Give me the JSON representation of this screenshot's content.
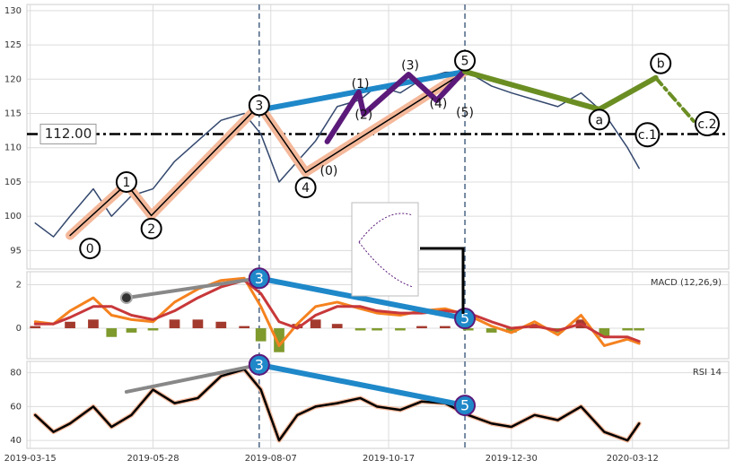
{
  "chart_data": [
    {
      "type": "line",
      "panel": "price",
      "xlim": [
        "2019-03-13",
        "2020-05-09"
      ],
      "ylim": [
        92.3,
        130.9
      ],
      "yticks": [
        95,
        100,
        105,
        110,
        115,
        120,
        125,
        130
      ],
      "x": [
        "2019-03-18",
        "2019-03-29",
        "2019-04-08",
        "2019-04-22",
        "2019-05-03",
        "2019-05-15",
        "2019-05-28",
        "2019-06-10",
        "2019-06-24",
        "2019-07-08",
        "2019-07-22",
        "2019-08-01",
        "2019-08-12",
        "2019-08-23",
        "2019-09-03",
        "2019-09-16",
        "2019-09-30",
        "2019-10-10",
        "2019-10-24",
        "2019-11-06",
        "2019-11-20",
        "2019-12-04",
        "2019-12-18",
        "2019-12-30",
        "2020-01-13",
        "2020-01-27",
        "2020-02-10",
        "2020-02-24",
        "2020-03-09",
        "2020-03-16"
      ],
      "series": [
        {
          "color": "#34486e",
          "width": 1.5,
          "values": [
            99,
            97,
            100,
            104,
            100,
            103,
            104,
            108,
            111,
            114,
            115,
            112,
            105,
            108,
            111,
            116,
            117,
            119,
            118,
            120,
            121,
            121,
            119,
            118,
            117,
            116,
            118,
            115,
            110,
            107
          ]
        }
      ],
      "hline": {
        "value": 112,
        "label": "112.00"
      },
      "vlines": [
        "2019-07-31",
        "2019-12-02"
      ],
      "waves": [
        {
          "color": "#f4b89a",
          "width": 10,
          "x": [
            "2019-04-08",
            "2019-05-12",
            "2019-05-27",
            "2019-07-31",
            "2019-08-28",
            "2019-12-02"
          ],
          "values": [
            97.2,
            104.7,
            100.1,
            116.2,
            106.4,
            121.1
          ]
        },
        {
          "color": "#000000",
          "width": 1.5,
          "x": [
            "2019-04-08",
            "2019-05-12",
            "2019-05-27",
            "2019-07-31",
            "2019-08-28",
            "2019-12-02"
          ],
          "values": [
            97.2,
            104.7,
            100.1,
            116.2,
            106.4,
            121.1
          ]
        },
        {
          "color": "#1f88c9",
          "width": 6,
          "x": [
            "2019-07-31",
            "2019-12-02"
          ],
          "values": [
            115.5,
            121.1
          ]
        },
        {
          "color": "#5b1a7a",
          "width": 6,
          "x": [
            "2019-09-10",
            "2019-09-29",
            "2019-10-02",
            "2019-10-29",
            "2019-11-15",
            "2019-12-02"
          ],
          "values": [
            110.9,
            118.1,
            114.9,
            120.7,
            116.9,
            121.3
          ]
        },
        {
          "color": "#6b8e23",
          "width": 6,
          "x": [
            "2019-12-02",
            "2020-02-21",
            "2020-03-26"
          ],
          "values": [
            121.1,
            115.6,
            120.2
          ]
        },
        {
          "color": "#6b8e23",
          "width": 4,
          "dashed": true,
          "x": [
            "2020-03-26",
            "2020-04-24"
          ],
          "values": [
            120.2,
            112.2
          ]
        }
      ],
      "annotations": [
        {
          "text": "0",
          "x": "2019-04-20",
          "y": 95.3,
          "style": "circle"
        },
        {
          "text": "1",
          "x": "2019-05-12",
          "y": 105.0,
          "style": "circle"
        },
        {
          "text": "2",
          "x": "2019-05-27",
          "y": 98.2,
          "style": "circle"
        },
        {
          "text": "3",
          "x": "2019-07-31",
          "y": 116.2,
          "style": "circle"
        },
        {
          "text": "4",
          "x": "2019-08-28",
          "y": 104.2,
          "style": "circle"
        },
        {
          "text": "5",
          "x": "2019-12-02",
          "y": 122.7,
          "style": "circle"
        },
        {
          "text": "(0)",
          "x": "2019-09-11",
          "y": 106.7,
          "style": "plain"
        },
        {
          "text": "(1)",
          "x": "2019-09-30",
          "y": 119.4,
          "style": "plain"
        },
        {
          "text": "(2)",
          "x": "2019-10-02",
          "y": 114.9,
          "style": "plain"
        },
        {
          "text": "(3)",
          "x": "2019-10-30",
          "y": 122.1,
          "style": "plain"
        },
        {
          "text": "(4)",
          "x": "2019-11-16",
          "y": 116.5,
          "style": "plain"
        },
        {
          "text": "(5)",
          "x": "2019-12-02",
          "y": 115.2,
          "style": "plain"
        },
        {
          "text": "a",
          "x": "2020-02-21",
          "y": 114.1,
          "style": "circle"
        },
        {
          "text": "b",
          "x": "2020-03-29",
          "y": 122.3,
          "style": "circle"
        },
        {
          "text": "c.1",
          "x": "2020-03-21",
          "y": 111.9,
          "style": "circle"
        },
        {
          "text": "c.2",
          "x": "2020-04-26",
          "y": 113.5,
          "style": "circle"
        }
      ]
    },
    {
      "type": "line",
      "panel": "macd",
      "label": "MACD (12,26,9)",
      "xlim": [
        "2019-03-13",
        "2020-05-09"
      ],
      "ylim": [
        -1.4,
        2.6
      ],
      "yticks": [
        0,
        2
      ],
      "x": [
        "2019-03-18",
        "2019-03-29",
        "2019-04-08",
        "2019-04-22",
        "2019-05-03",
        "2019-05-15",
        "2019-05-28",
        "2019-06-10",
        "2019-06-24",
        "2019-07-08",
        "2019-07-22",
        "2019-08-01",
        "2019-08-12",
        "2019-08-23",
        "2019-09-03",
        "2019-09-16",
        "2019-09-30",
        "2019-10-10",
        "2019-10-24",
        "2019-11-06",
        "2019-11-20",
        "2019-12-04",
        "2019-12-18",
        "2019-12-30",
        "2020-01-13",
        "2020-01-27",
        "2020-02-10",
        "2020-02-24",
        "2020-03-09",
        "2020-03-16"
      ],
      "histogram": {
        "colors": [
          "#a33a2e",
          "#7f9a2d"
        ],
        "values": [
          0.1,
          0,
          0.3,
          0.4,
          -0.4,
          -0.2,
          -0.1,
          0.4,
          0.4,
          0.3,
          0.1,
          -0.6,
          -1.1,
          0.2,
          0.4,
          0.2,
          -0.1,
          -0.1,
          -0.1,
          0.1,
          0.1,
          -0.1,
          -0.2,
          -0.2,
          0.2,
          -0.2,
          0.4,
          -0.4,
          -0.1,
          -0.1
        ]
      },
      "series": [
        {
          "color": "#f5821f",
          "width": 3,
          "values": [
            0.3,
            0.2,
            0.8,
            1.4,
            0.6,
            0.4,
            0.3,
            1.2,
            1.8,
            2.2,
            2.3,
            1.0,
            -0.8,
            0.2,
            1.0,
            1.2,
            0.9,
            0.7,
            0.6,
            0.8,
            0.9,
            0.6,
            0.1,
            -0.2,
            0.3,
            -0.3,
            0.6,
            -0.8,
            -0.5,
            -0.7
          ]
        },
        {
          "color": "#c8383a",
          "width": 3,
          "values": [
            0.2,
            0.2,
            0.5,
            1.0,
            1.0,
            0.6,
            0.4,
            0.8,
            1.4,
            1.9,
            2.2,
            1.6,
            0.3,
            0.0,
            0.6,
            1.0,
            1.0,
            0.8,
            0.7,
            0.7,
            0.8,
            0.7,
            0.3,
            0.0,
            0.1,
            -0.1,
            0.2,
            -0.4,
            -0.4,
            -0.6
          ]
        }
      ],
      "vlines": [
        "2019-07-31",
        "2019-12-02"
      ],
      "waves": [
        {
          "color": "#888888",
          "width": 4,
          "x": [
            "2019-05-12",
            "2019-07-31"
          ],
          "values": [
            1.4,
            2.3
          ],
          "dot": true
        },
        {
          "color": "#1f88c9",
          "width": 6,
          "x": [
            "2019-07-31",
            "2019-12-02"
          ],
          "values": [
            2.3,
            0.45
          ]
        }
      ],
      "annotations": [
        {
          "text": "3",
          "x": "2019-07-31",
          "y": 2.3,
          "style": "disc"
        },
        {
          "text": "5",
          "x": "2019-12-02",
          "y": 0.45,
          "style": "disc"
        }
      ]
    },
    {
      "type": "line",
      "panel": "rsi",
      "label": "RSI 14",
      "xlim": [
        "2019-03-13",
        "2020-05-09"
      ],
      "ylim": [
        35.3,
        86.7
      ],
      "yticks": [
        40,
        60,
        80
      ],
      "xticks": [
        "2019-03-15",
        "2019-05-28",
        "2019-08-07",
        "2019-10-17",
        "2019-12-30",
        "2020-03-12"
      ],
      "x": [
        "2019-03-18",
        "2019-03-29",
        "2019-04-08",
        "2019-04-22",
        "2019-05-03",
        "2019-05-15",
        "2019-05-28",
        "2019-06-10",
        "2019-06-24",
        "2019-07-08",
        "2019-07-22",
        "2019-08-01",
        "2019-08-12",
        "2019-08-23",
        "2019-09-03",
        "2019-09-16",
        "2019-09-30",
        "2019-10-10",
        "2019-10-24",
        "2019-11-06",
        "2019-11-20",
        "2019-12-04",
        "2019-12-18",
        "2019-12-30",
        "2020-01-13",
        "2020-01-27",
        "2020-02-10",
        "2020-02-24",
        "2020-03-09",
        "2020-03-16"
      ],
      "series": [
        {
          "color": "#f4b89a",
          "width": 5,
          "values": [
            55,
            45,
            50,
            60,
            48,
            55,
            70,
            62,
            65,
            78,
            82,
            70,
            40,
            55,
            60,
            62,
            65,
            60,
            58,
            63,
            62,
            55,
            50,
            48,
            55,
            52,
            60,
            45,
            40,
            50
          ]
        },
        {
          "color": "#000000",
          "width": 2.5,
          "values": [
            55,
            45,
            50,
            60,
            48,
            55,
            70,
            62,
            65,
            78,
            82,
            70,
            40,
            55,
            60,
            62,
            65,
            60,
            58,
            63,
            62,
            55,
            50,
            48,
            55,
            52,
            60,
            45,
            40,
            50
          ]
        }
      ],
      "vlines": [
        "2019-07-31",
        "2019-12-02"
      ],
      "waves": [
        {
          "color": "#888888",
          "width": 4,
          "x": [
            "2019-05-12",
            "2019-07-31"
          ],
          "values": [
            68.7,
            84.7
          ]
        },
        {
          "color": "#1f88c9",
          "width": 6,
          "x": [
            "2019-07-31",
            "2019-12-02"
          ],
          "values": [
            84.7,
            60.7
          ]
        }
      ],
      "annotations": [
        {
          "text": "3",
          "x": "2019-07-31",
          "y": 84.7,
          "style": "disc"
        },
        {
          "text": "5",
          "x": "2019-12-02",
          "y": 60.7,
          "style": "disc"
        }
      ]
    }
  ]
}
